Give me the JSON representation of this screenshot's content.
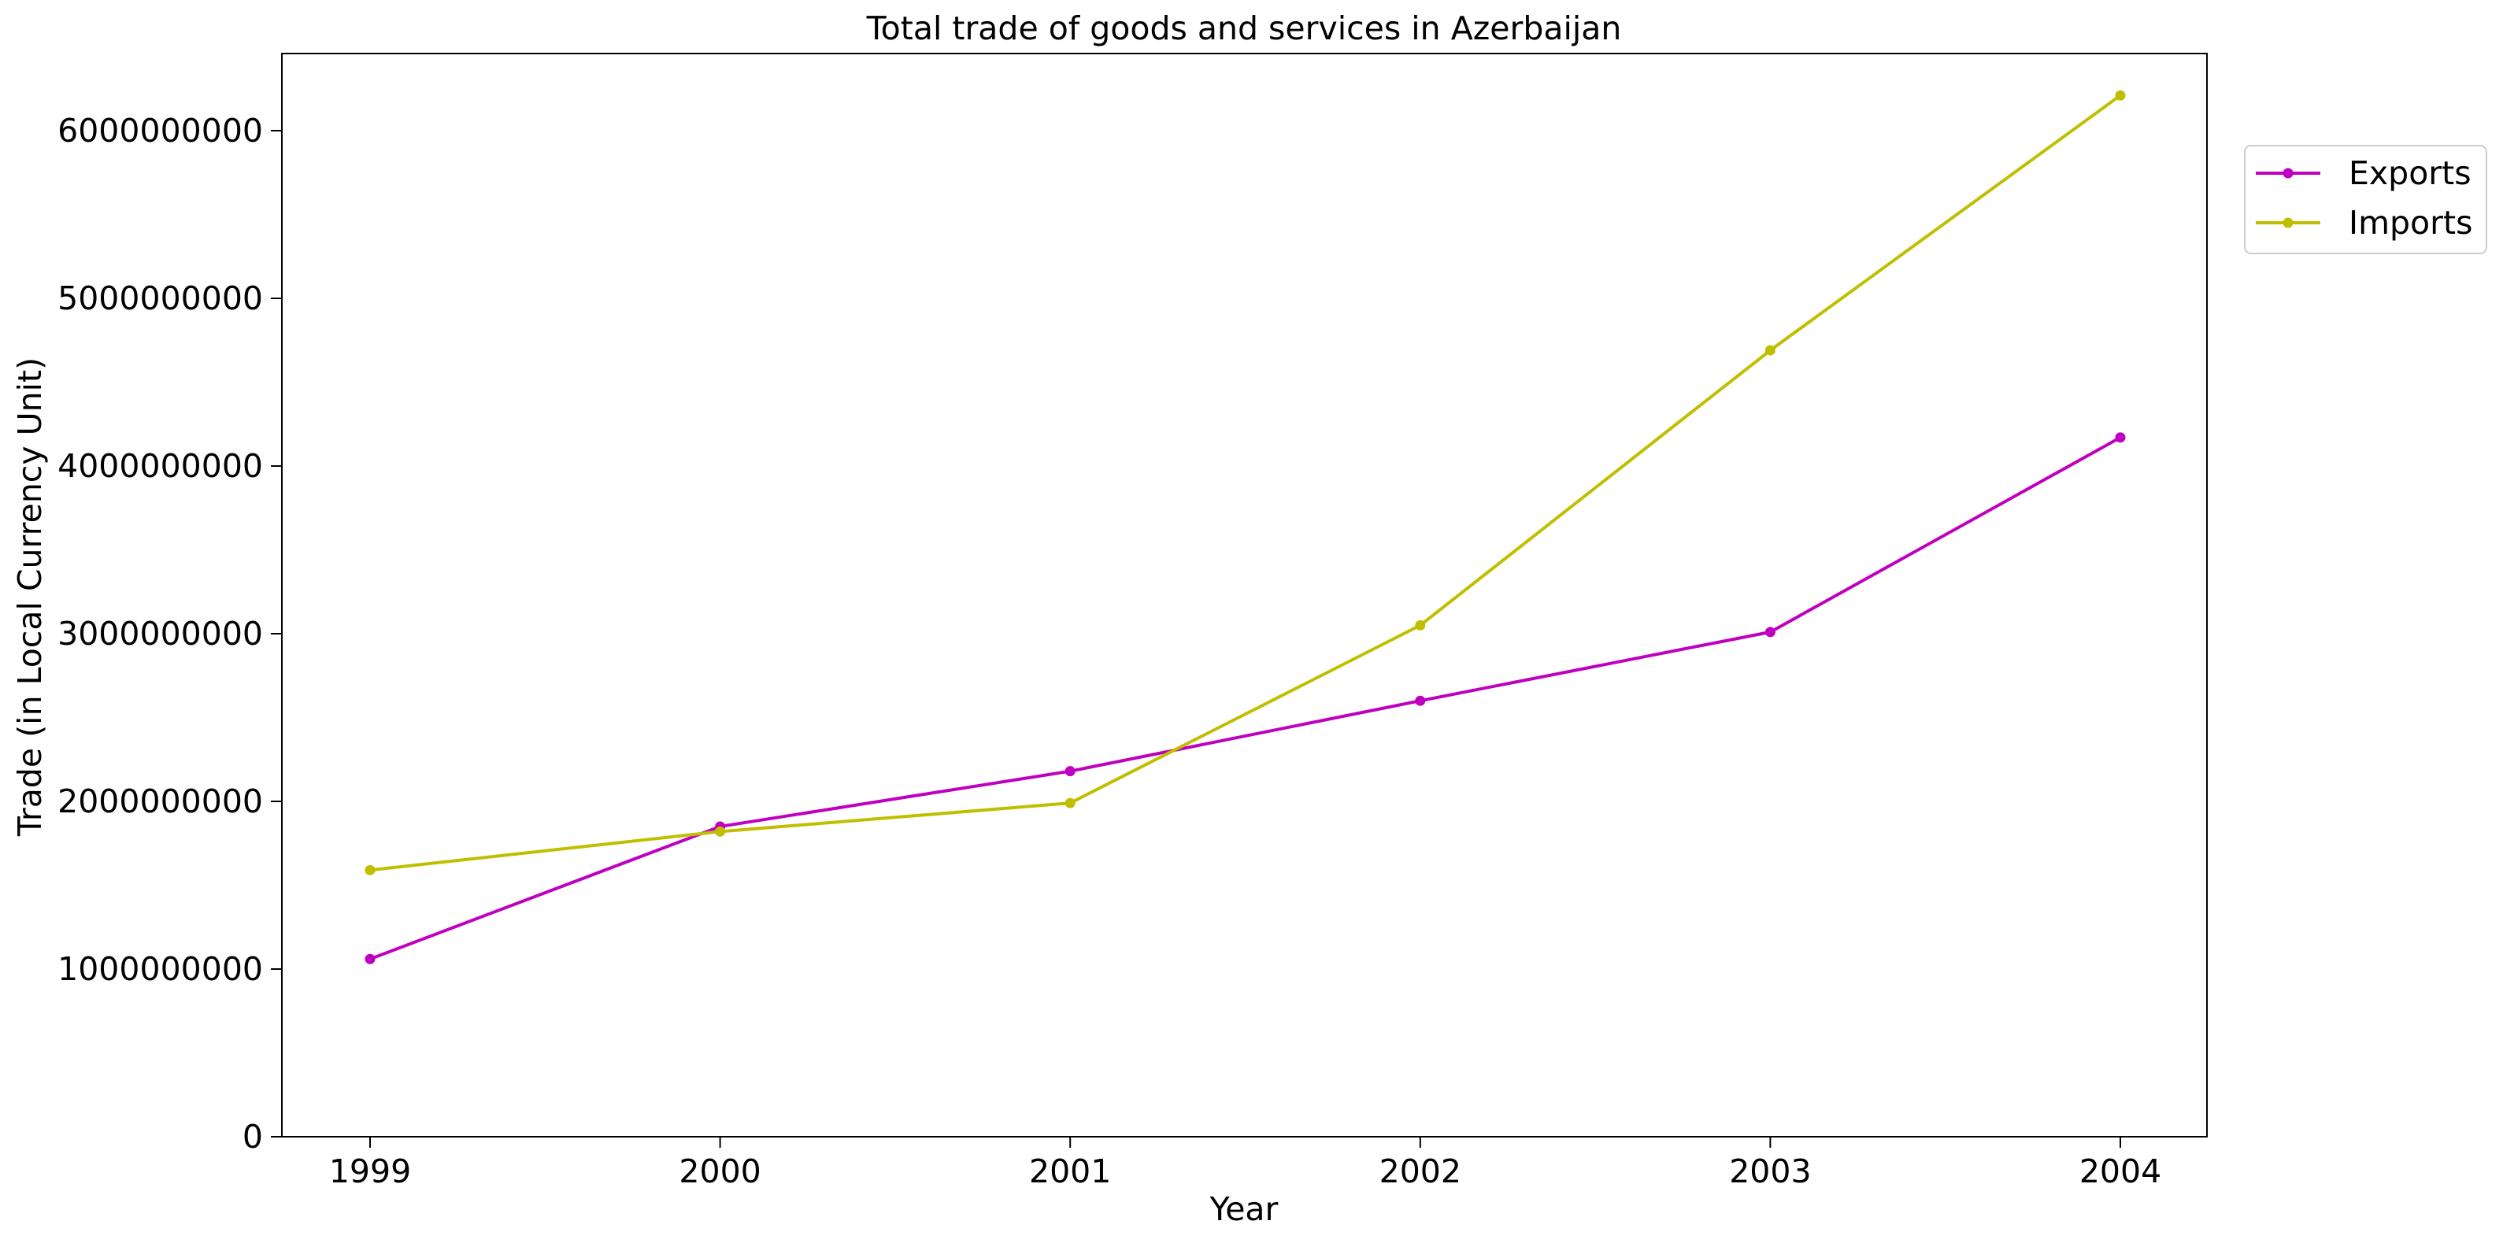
{
  "chart_data": {
    "type": "line",
    "title": "Total trade of goods and services in Azerbaijan",
    "xlabel": "Year",
    "ylabel": "Trade (in Local Currency Unit)",
    "categories": [
      "1999",
      "2000",
      "2001",
      "2002",
      "2003",
      "2004"
    ],
    "y_ticks": [
      0,
      1000000000,
      2000000000,
      3000000000,
      4000000000,
      5000000000,
      6000000000
    ],
    "y_tick_labels": [
      "0",
      "1000000000",
      "2000000000",
      "3000000000",
      "4000000000",
      "5000000000",
      "6000000000"
    ],
    "ylim": [
      0,
      6460000000
    ],
    "grid": false,
    "legend_position": "upper-right-outside",
    "series": [
      {
        "name": "Exports",
        "color": "#c000c0",
        "values": [
          1060000000,
          1850000000,
          2180000000,
          2600000000,
          3010000000,
          4170000000
        ]
      },
      {
        "name": "Imports",
        "color": "#bfbf00",
        "values": [
          1590000000,
          1820000000,
          1990000000,
          3050000000,
          4690000000,
          6210000000
        ]
      }
    ]
  }
}
